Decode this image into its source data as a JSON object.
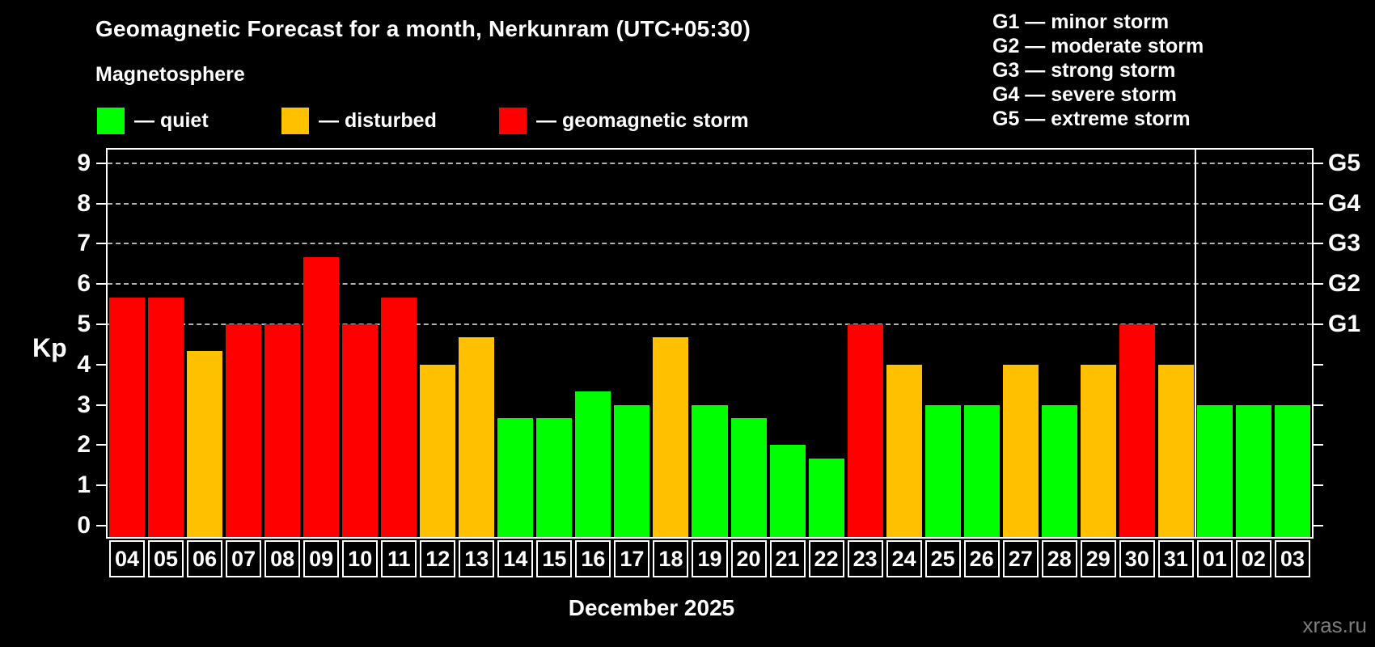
{
  "header": {
    "title": "Geomagnetic Forecast for a month, Nerkunram (UTC+05:30)",
    "subtitle": "Magnetosphere",
    "legend": [
      {
        "key": "quiet",
        "label": "— quiet"
      },
      {
        "key": "disturbed",
        "label": "— disturbed"
      },
      {
        "key": "storm",
        "label": "— geomagnetic storm"
      }
    ],
    "g_scale_legend": [
      "G1 — minor storm",
      "G2 — moderate storm",
      "G3 — strong storm",
      "G4 — severe storm",
      "G5 — extreme storm"
    ]
  },
  "colors": {
    "quiet": "#00ff00",
    "disturbed": "#ffc000",
    "storm": "#ff0000",
    "grid": "#b4b4b4",
    "axis": "#ffffff",
    "watermark": "#7d7d7d"
  },
  "axes": {
    "y_label": "Kp",
    "y_ticks": [
      0,
      1,
      2,
      3,
      4,
      5,
      6,
      7,
      8,
      9
    ],
    "gridlines": [
      5,
      6,
      7,
      8,
      9
    ],
    "right_labels": [
      {
        "value": 5,
        "label": "G1"
      },
      {
        "value": 6,
        "label": "G2"
      },
      {
        "value": 7,
        "label": "G3"
      },
      {
        "value": 8,
        "label": "G4"
      },
      {
        "value": 9,
        "label": "G5"
      }
    ],
    "x_label": "December 2025"
  },
  "watermark": "xras.ru",
  "chart_data": {
    "type": "bar",
    "title": "Geomagnetic Forecast for a month, Nerkunram (UTC+05:30)",
    "xlabel": "December 2025",
    "ylabel": "Kp",
    "ylim": [
      0,
      9.4
    ],
    "grid": "horizontal dashed lines at Kp 5,6,7,8,9 (G1-G5 levels)",
    "legend_position": "top-left",
    "right_axis_labels": [
      "G1",
      "G2",
      "G3",
      "G4",
      "G5"
    ],
    "month_separator_after_index": 27,
    "categories": [
      "04",
      "05",
      "06",
      "07",
      "08",
      "09",
      "10",
      "11",
      "12",
      "13",
      "14",
      "15",
      "16",
      "17",
      "18",
      "19",
      "20",
      "21",
      "22",
      "23",
      "24",
      "25",
      "26",
      "27",
      "28",
      "29",
      "30",
      "31",
      "01",
      "02",
      "03"
    ],
    "values": [
      5.67,
      5.67,
      4.33,
      5,
      5,
      6.67,
      5,
      5.67,
      4,
      4.67,
      2.67,
      2.67,
      3.33,
      3,
      4.67,
      3,
      2.67,
      2,
      1.67,
      5,
      4,
      3,
      3,
      4,
      3,
      4,
      5,
      4,
      3,
      3,
      3
    ],
    "statuses": [
      "storm",
      "storm",
      "disturbed",
      "storm",
      "storm",
      "storm",
      "storm",
      "storm",
      "disturbed",
      "disturbed",
      "quiet",
      "quiet",
      "quiet",
      "quiet",
      "disturbed",
      "quiet",
      "quiet",
      "quiet",
      "quiet",
      "storm",
      "disturbed",
      "quiet",
      "quiet",
      "disturbed",
      "quiet",
      "disturbed",
      "storm",
      "disturbed",
      "quiet",
      "quiet",
      "quiet"
    ]
  }
}
